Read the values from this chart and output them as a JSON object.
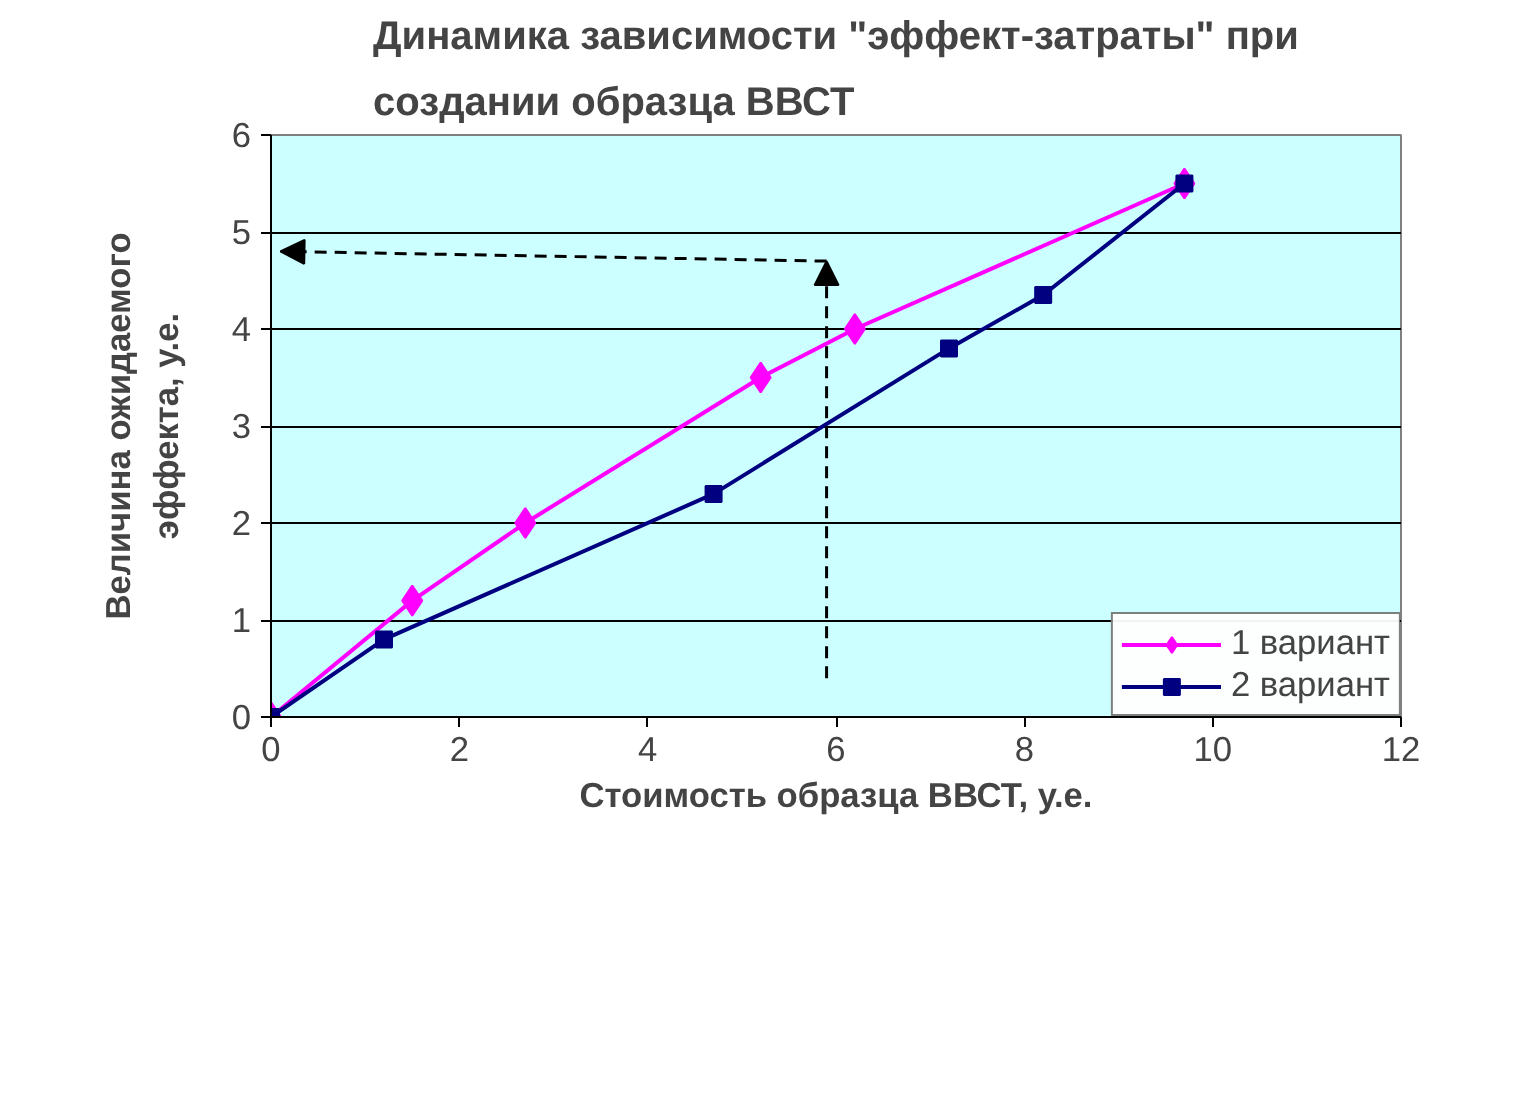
{
  "chart_data": {
    "type": "line",
    "title": "Динамика зависимости \"эффект-затраты\" при\nсоздании образца ВВСТ",
    "xlabel": "Стоимость образца ВВСТ, у.е.",
    "ylabel": "Величина ожидаемого\nэффекта, у.е.",
    "series": [
      {
        "name": "1 вариант",
        "color": "#ff00ff",
        "marker": "diamond",
        "x": [
          0,
          1.5,
          2.7,
          5.2,
          6.2,
          9.7
        ],
        "values": [
          0,
          1.2,
          2,
          3.5,
          4,
          5.5
        ]
      },
      {
        "name": "2 вариант",
        "color": "#000080",
        "marker": "square",
        "x": [
          0,
          1.2,
          4.7,
          7.2,
          8.2,
          9.7
        ],
        "values": [
          0,
          0.8,
          2.3,
          3.8,
          4.35,
          5.5
        ]
      }
    ],
    "xlim": [
      0,
      12
    ],
    "xticks": [
      0,
      2,
      4,
      6,
      8,
      10,
      12
    ],
    "ylim": [
      0,
      6
    ],
    "yticks": [
      0,
      1,
      2,
      3,
      4,
      5,
      6
    ],
    "grid": "y",
    "legend": "bottom right",
    "line_style": "solid"
  }
}
